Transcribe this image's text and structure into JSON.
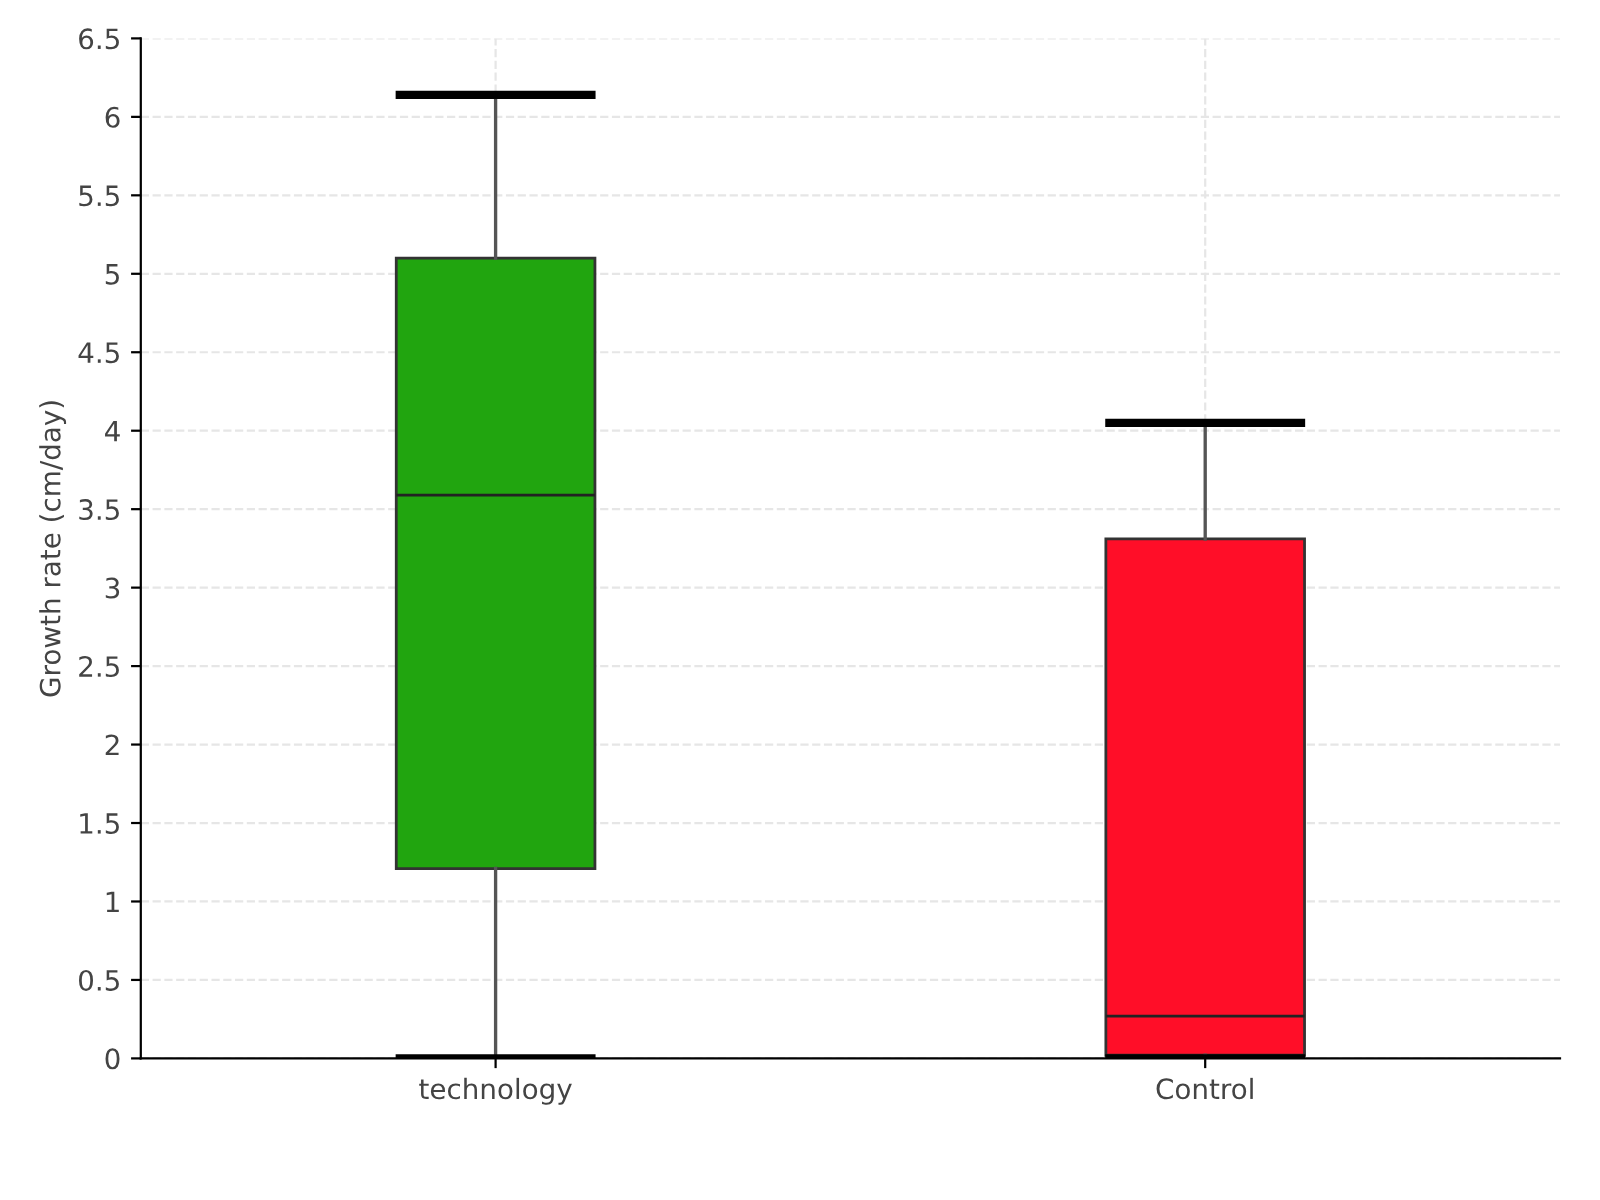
{
  "chart_data": {
    "type": "box",
    "ylabel": "Growth rate (cm/day)",
    "categories": [
      "technology",
      "Control"
    ],
    "boxes": [
      {
        "low": 0,
        "q1": 1.21,
        "median": 3.59,
        "q3": 5.1,
        "high": 6.14
      },
      {
        "low": 0,
        "q1": 0.02,
        "median": 0.27,
        "q3": 3.31,
        "high": 4.05
      }
    ],
    "colors": [
      "#21a50f",
      "#ff0e28"
    ],
    "ylim": [
      0,
      6.5
    ],
    "yticks": [
      0,
      0.5,
      1,
      1.5,
      2,
      2.5,
      3,
      3.5,
      4,
      4.5,
      5,
      5.5,
      6,
      6.5
    ],
    "grid": true
  }
}
